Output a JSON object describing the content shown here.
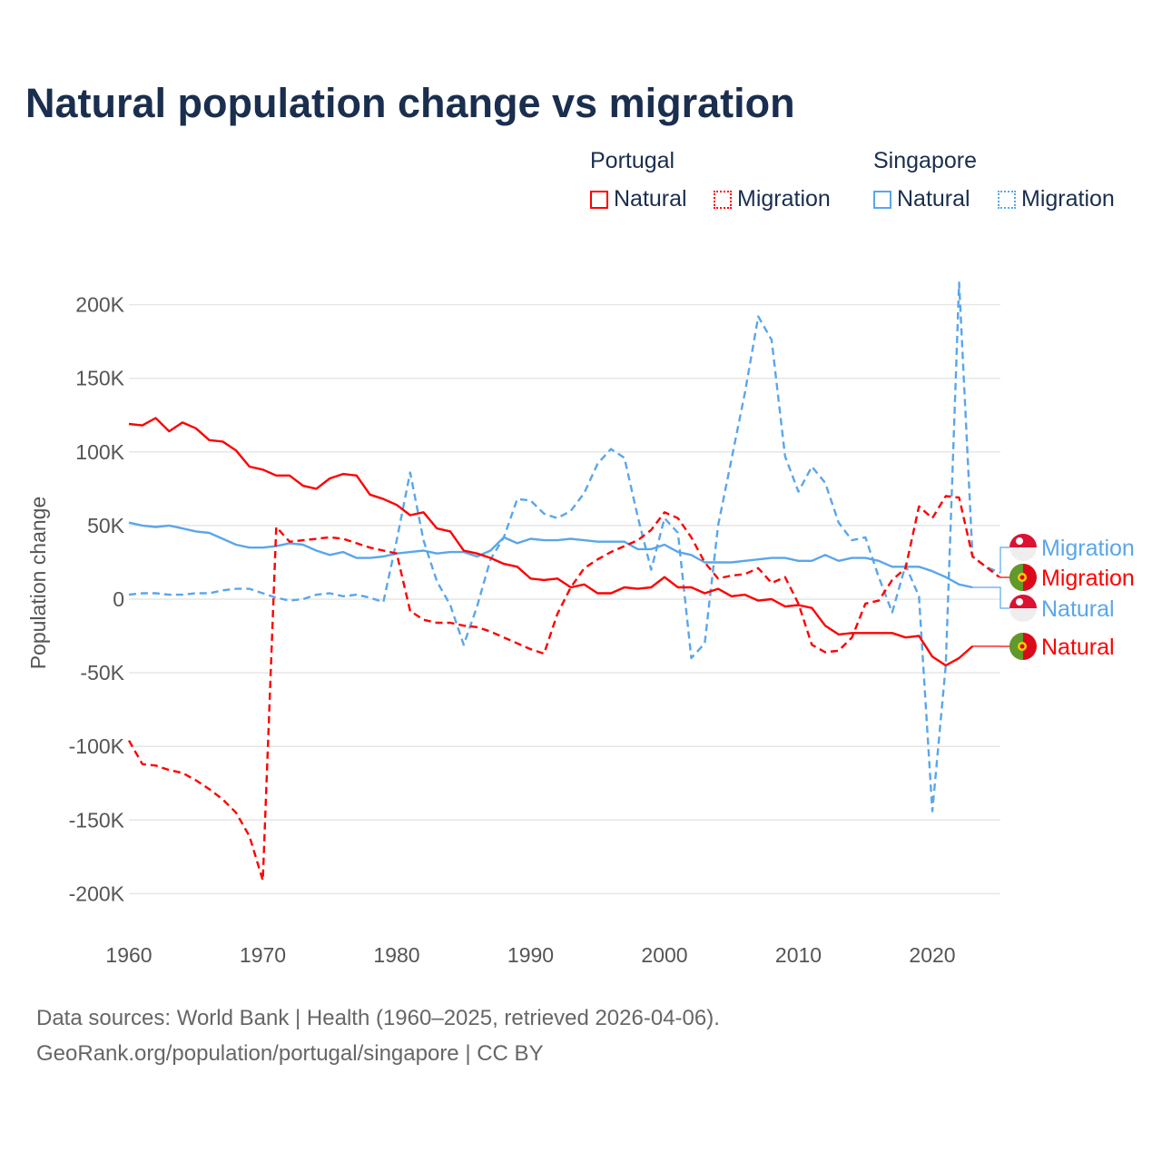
{
  "title": "Natural population change vs migration",
  "legend": {
    "groups": [
      {
        "name": "Portugal",
        "color": "#ff0000",
        "items": [
          {
            "label": "Natural",
            "style": "solid"
          },
          {
            "label": "Migration",
            "style": "dotted"
          }
        ]
      },
      {
        "name": "Singapore",
        "color": "#5aa6ea",
        "items": [
          {
            "label": "Natural",
            "style": "solid"
          },
          {
            "label": "Migration",
            "style": "dotted"
          }
        ]
      }
    ]
  },
  "footer": {
    "line1": "Data sources: World Bank | Health (1960–2025, retrieved 2026-04-06).",
    "line2": "GeoRank.org/population/portugal/singapore | CC BY"
  },
  "chart_data": {
    "type": "line",
    "title": "Natural population change vs migration",
    "xlabel": "",
    "ylabel": "Population change",
    "xlim": [
      1960,
      2025
    ],
    "ylim": [
      -200000,
      200000
    ],
    "x_ticks": [
      "1960",
      "1970",
      "1980",
      "1990",
      "2000",
      "2010",
      "2020"
    ],
    "y_ticks": [
      "200K",
      "150K",
      "100K",
      "50K",
      "0",
      "-50K",
      "-100K",
      "-150K",
      "-200K"
    ],
    "y_tick_values": [
      200,
      150,
      100,
      50,
      0,
      -50,
      -100,
      -150,
      -200
    ],
    "units": "thousands",
    "start_year": 1960,
    "series": [
      {
        "name": "Portugal Natural",
        "label": "Natural",
        "country": "Portugal",
        "color": "#ff0000",
        "dash": false,
        "values": [
          119,
          118,
          123,
          114,
          120,
          116,
          108,
          107,
          101,
          90,
          88,
          84,
          84,
          77,
          75,
          82,
          85,
          84,
          71,
          68,
          64,
          57,
          59,
          48,
          46,
          33,
          31,
          28,
          24,
          22,
          14,
          13,
          14,
          8,
          10,
          4,
          4,
          8,
          7,
          8,
          15,
          8,
          8,
          4,
          7,
          2,
          3,
          -1,
          0,
          -5,
          -4,
          -6,
          -18,
          -24,
          -23,
          -23,
          -23,
          -23,
          -26,
          -25,
          -39,
          -45,
          -40,
          -32
        ]
      },
      {
        "name": "Portugal Migration",
        "label": "Migration",
        "country": "Portugal",
        "color": "#ff0000",
        "dash": true,
        "values": [
          -96,
          -112,
          -113,
          -116,
          -118,
          -123,
          -129,
          -136,
          -145,
          -161,
          -191,
          49,
          39,
          40,
          41,
          42,
          41,
          38,
          35,
          33,
          31,
          -8,
          -14,
          -16,
          -16,
          -18,
          -19,
          -22,
          -26,
          -30,
          -34,
          -37,
          -10,
          8,
          21,
          27,
          32,
          36,
          40,
          47,
          59,
          55,
          42,
          25,
          14,
          16,
          17,
          21,
          11,
          15,
          -3,
          -31,
          -36,
          -35,
          -26,
          -3,
          -1,
          13,
          21,
          63,
          55,
          70,
          69,
          29,
          22,
          15
        ]
      },
      {
        "name": "Singapore Natural",
        "label": "Natural",
        "country": "Singapore",
        "color": "#5aa6ea",
        "dash": false,
        "values": [
          52,
          50,
          49,
          50,
          48,
          46,
          45,
          41,
          37,
          35,
          35,
          36,
          38,
          37,
          33,
          30,
          32,
          28,
          28,
          29,
          31,
          32,
          33,
          31,
          32,
          32,
          29,
          33,
          42,
          38,
          41,
          40,
          40,
          41,
          40,
          39,
          39,
          39,
          34,
          34,
          37,
          32,
          30,
          25,
          25,
          25,
          26,
          27,
          28,
          28,
          26,
          26,
          30,
          26,
          28,
          28,
          26,
          22,
          22,
          22,
          19,
          15,
          10,
          8
        ]
      },
      {
        "name": "Singapore Migration",
        "label": "Migration",
        "country": "Singapore",
        "color": "#5aa6ea",
        "dash": true,
        "values": [
          3,
          4,
          4,
          3,
          3,
          4,
          4,
          6,
          7,
          7,
          4,
          1,
          -1,
          0,
          3,
          4,
          2,
          3,
          1,
          -2,
          40,
          86,
          40,
          12,
          -4,
          -31,
          -5,
          27,
          42,
          68,
          67,
          58,
          55,
          60,
          72,
          92,
          102,
          96,
          56,
          20,
          55,
          45,
          -40,
          -30,
          50,
          95,
          140,
          192,
          176,
          97,
          73,
          90,
          79,
          52,
          40,
          42,
          15,
          -9,
          23,
          2,
          -144,
          -45,
          215,
          29,
          22,
          18
        ]
      }
    ],
    "end_labels": [
      {
        "text": "Migration",
        "country": "Singapore",
        "color": "#5aa6ea"
      },
      {
        "text": "Migration",
        "country": "Portugal",
        "color": "#ff0000"
      },
      {
        "text": "Natural",
        "country": "Singapore",
        "color": "#5aa6ea"
      },
      {
        "text": "Natural",
        "country": "Portugal",
        "color": "#ff0000"
      }
    ],
    "grid": true,
    "legend_position": "top-right"
  }
}
